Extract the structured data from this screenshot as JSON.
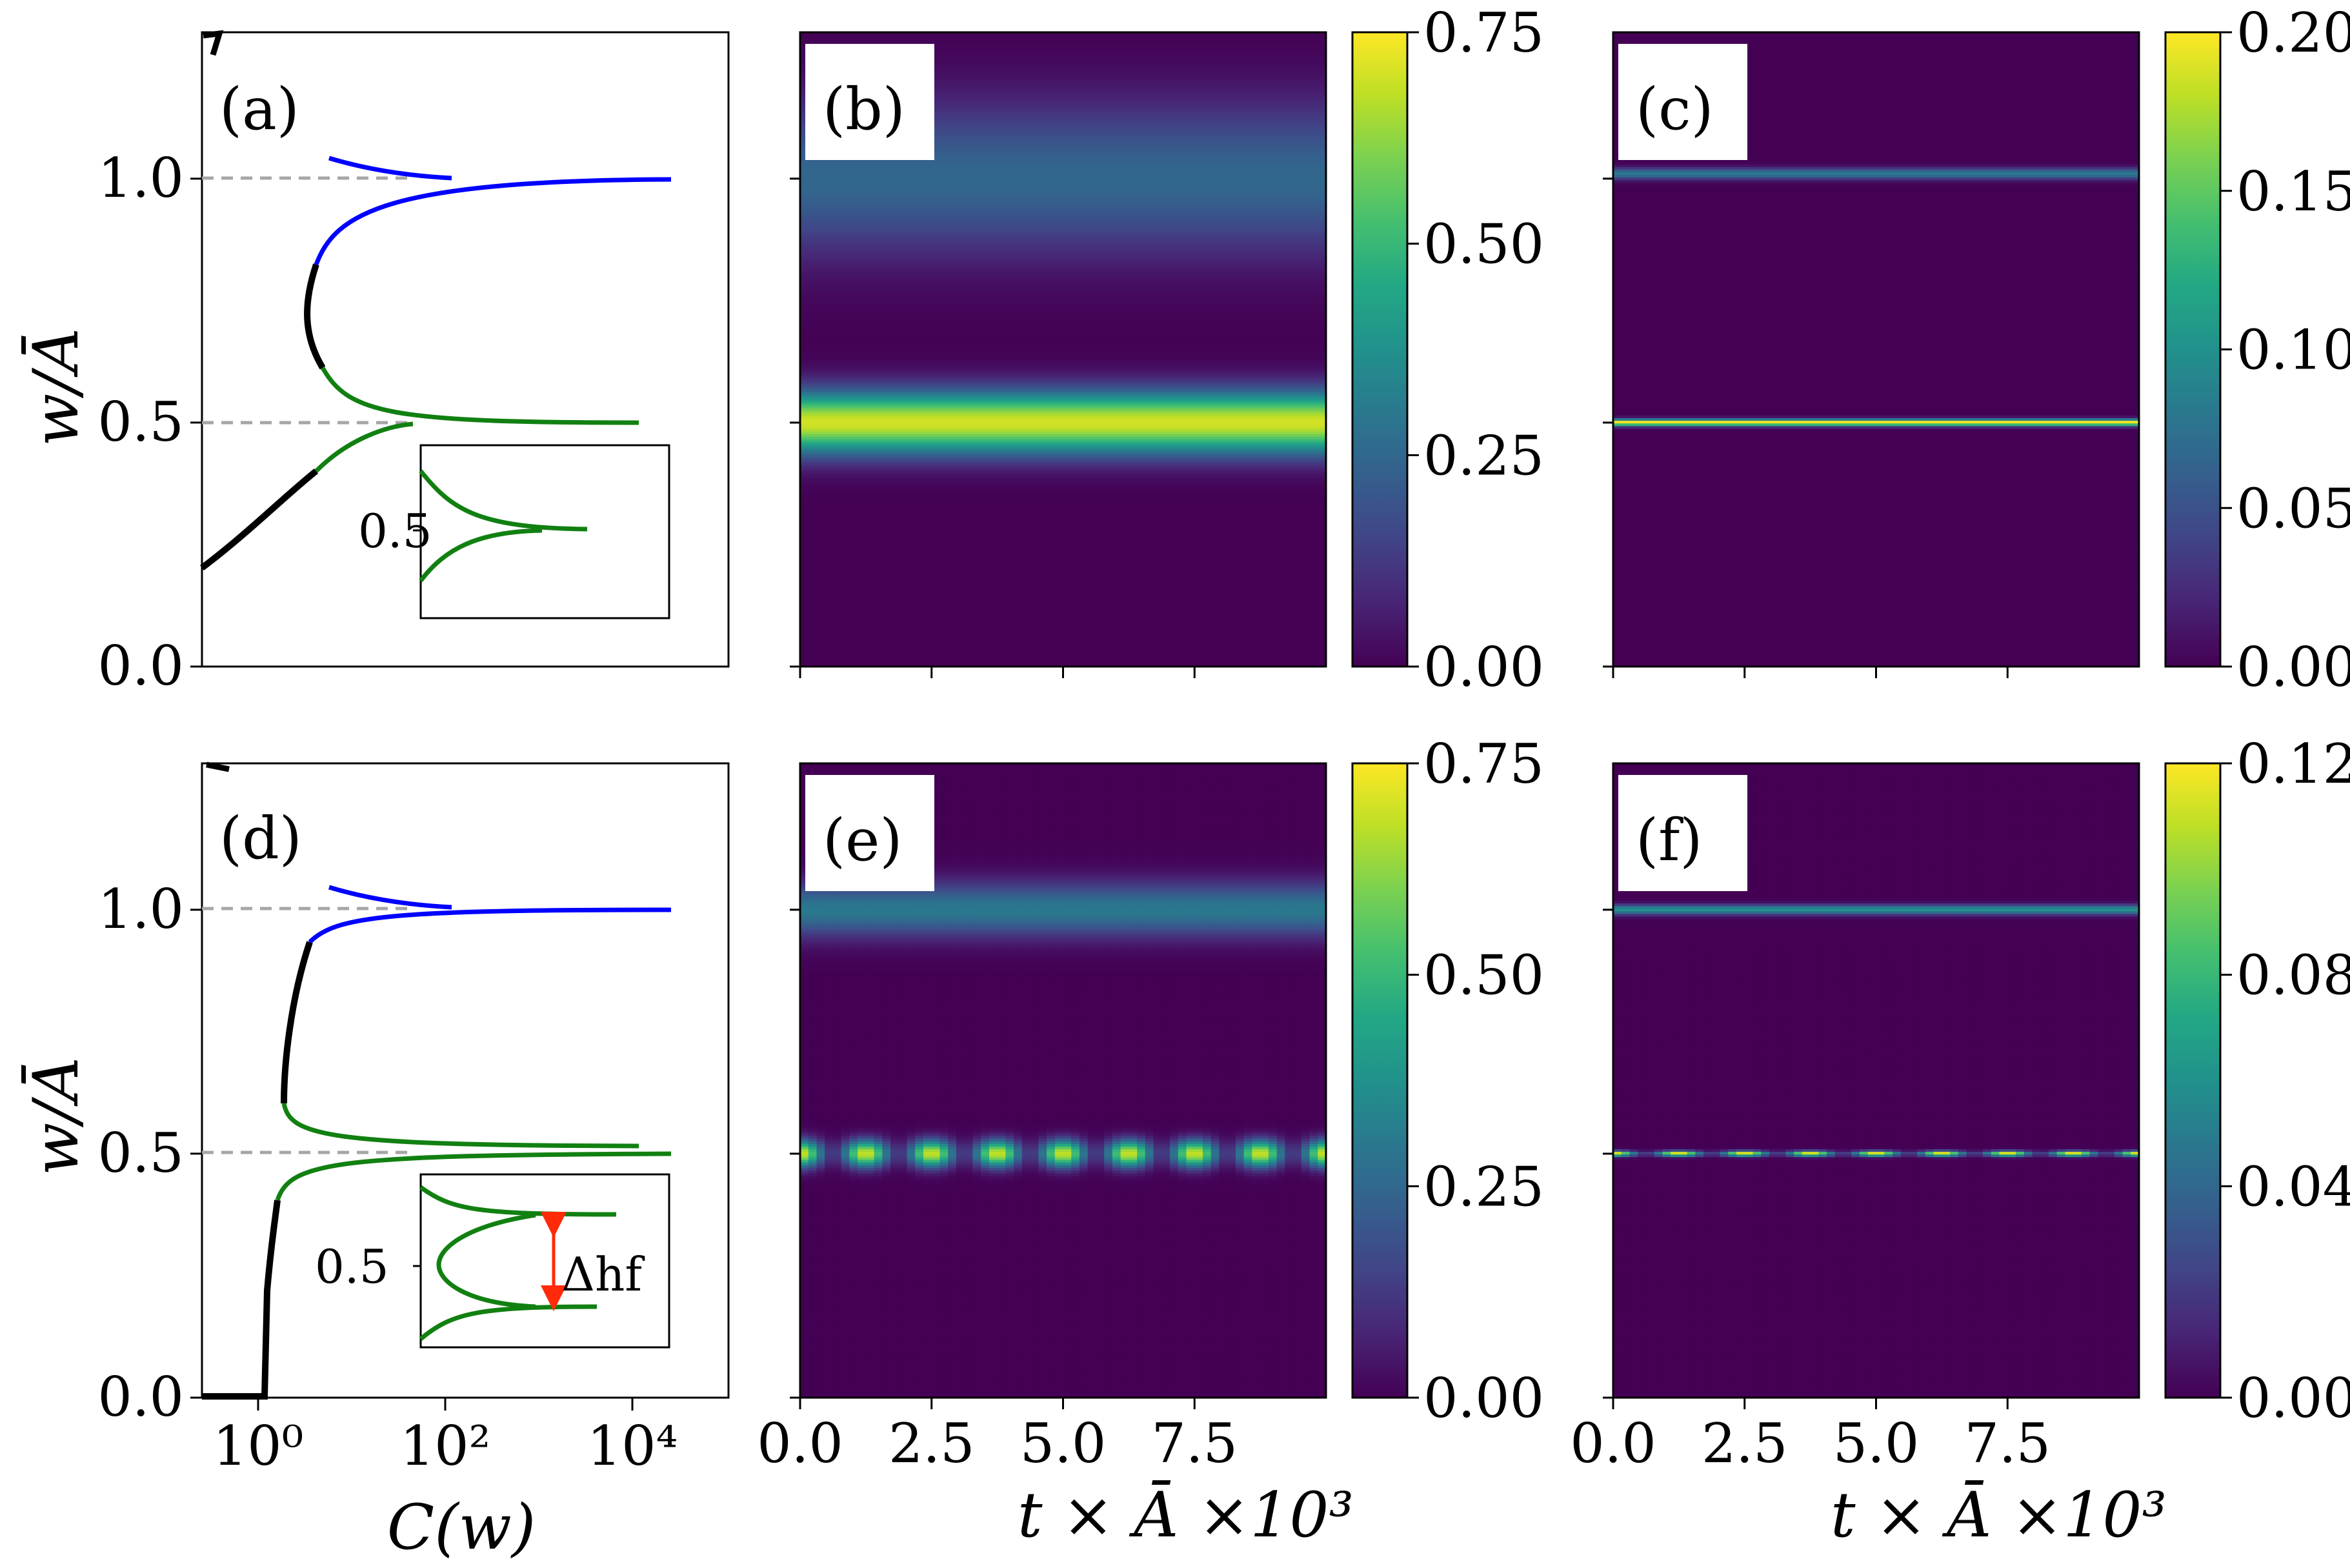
{
  "colors": {
    "blue": "#0000ff",
    "green": "#118011",
    "black": "#000000",
    "dashed": "#a6a6a6",
    "arrow": "#ff2a0a"
  },
  "labels": {
    "y_axis": "w/Ā",
    "x_axis_c": "C(w)",
    "x_axis_t": "t × Ā ×10³",
    "inset_tick": "0.5",
    "delta": "Δhf"
  },
  "chart_data": [
    {
      "panel": "(a)",
      "type": "line",
      "xlabel": "C(w)",
      "ylabel": "w/Ā",
      "xscale": "log",
      "ylim": [
        0,
        1.3
      ],
      "yticks": [
        "0.0",
        "0.5",
        "1.0"
      ],
      "reference_lines": [
        0.5,
        1.0
      ],
      "series": [
        {
          "color": "green",
          "points": [
            [
              1.3,
              0.52
            ],
            [
              5,
              0.5
            ],
            [
              100,
              0.5
            ],
            [
              10000,
              0.5
            ]
          ]
        },
        {
          "color": "blue",
          "points": [
            [
              5,
              1.05
            ],
            [
              30,
              1.0
            ],
            [
              20000,
              1.0
            ]
          ]
        },
        {
          "color": "black",
          "points": [
            [
              0.3,
              0.2
            ],
            [
              1,
              0.3
            ],
            [
              4,
              0.6
            ],
            [
              5,
              0.75
            ]
          ]
        }
      ],
      "inset": {
        "ytick": "0.5"
      }
    },
    {
      "panel": "(b)",
      "type": "heatmap",
      "xlabel": "",
      "ylim": [
        0,
        1.3
      ],
      "colorbar_ticks": [
        "0.00",
        "0.25",
        "0.50",
        "0.75"
      ],
      "colorbar_range": [
        0,
        0.75
      ],
      "bands": [
        {
          "center": 0.5,
          "width": 0.14,
          "peak": 0.7
        },
        {
          "center": 1.0,
          "width": 0.33,
          "peak": 0.25
        }
      ]
    },
    {
      "panel": "(c)",
      "type": "heatmap",
      "xlabel": "",
      "ylim": [
        0,
        1.3
      ],
      "colorbar_ticks": [
        "0.00",
        "0.05",
        "0.10",
        "0.15",
        "0.20"
      ],
      "colorbar_range": [
        0,
        0.2
      ],
      "bands": [
        {
          "center": 0.5,
          "width": 0.015,
          "peak": 0.2
        },
        {
          "center": 1.01,
          "width": 0.025,
          "peak": 0.08
        }
      ]
    },
    {
      "panel": "(d)",
      "type": "line",
      "xlabel": "C(w)",
      "ylabel": "w/Ā",
      "xscale": "log",
      "ylim": [
        0,
        1.3
      ],
      "yticks": [
        "0.0",
        "0.5",
        "1.0"
      ],
      "xticks": [
        "10⁰",
        "10²",
        "10⁴"
      ],
      "reference_lines": [
        0.5,
        1.0
      ],
      "series": [
        {
          "color": "green",
          "points": [
            [
              1.5,
              0.6
            ],
            [
              10,
              0.51
            ],
            [
              100,
              0.5
            ],
            [
              10000,
              0.5
            ]
          ]
        },
        {
          "color": "blue",
          "points": [
            [
              5,
              1.05
            ],
            [
              30,
              1.0
            ],
            [
              20000,
              1.0
            ]
          ]
        },
        {
          "color": "black",
          "points": [
            [
              0.3,
              0.0
            ],
            [
              1,
              0.0
            ],
            [
              1.2,
              0.4
            ],
            [
              2,
              0.8
            ]
          ]
        }
      ],
      "inset": {
        "ytick": "0.5",
        "annotation": "Δhf"
      }
    },
    {
      "panel": "(e)",
      "type": "heatmap",
      "xlabel": "t × Ā ×10³",
      "xlim": [
        0,
        10
      ],
      "xticks": [
        "0.0",
        "2.5",
        "5.0",
        "7.5"
      ],
      "ylim": [
        0,
        1.3
      ],
      "colorbar_ticks": [
        "0.00",
        "0.25",
        "0.50",
        "0.75"
      ],
      "colorbar_range": [
        0,
        0.75
      ],
      "bands": [
        {
          "center": 0.5,
          "width": 0.06,
          "peak": 0.7,
          "oscillating": true,
          "periods": 8
        },
        {
          "center": 1.0,
          "width": 0.12,
          "peak": 0.3
        }
      ]
    },
    {
      "panel": "(f)",
      "type": "heatmap",
      "xlabel": "t × Ā ×10³",
      "xlim": [
        0,
        10
      ],
      "xticks": [
        "0.0",
        "2.5",
        "5.0",
        "7.5"
      ],
      "ylim": [
        0,
        1.3
      ],
      "colorbar_ticks": [
        "0.00",
        "0.04",
        "0.08",
        "0.12"
      ],
      "colorbar_range": [
        0,
        0.12
      ],
      "bands": [
        {
          "center": 0.5,
          "width": 0.012,
          "peak": 0.12,
          "oscillating": true,
          "periods": 8
        },
        {
          "center": 1.0,
          "width": 0.022,
          "peak": 0.06
        }
      ]
    }
  ]
}
